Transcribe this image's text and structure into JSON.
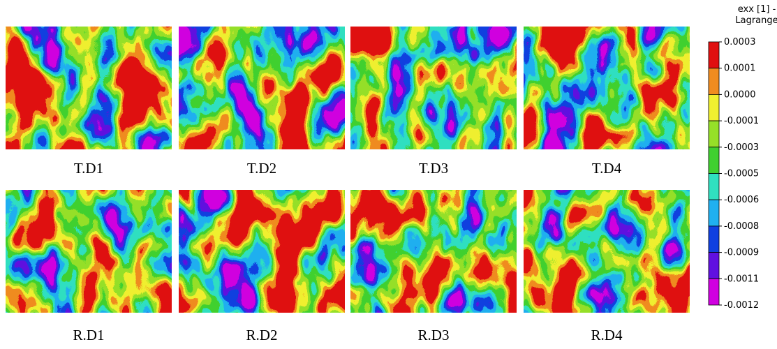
{
  "panels": [
    {
      "label": "T.D1"
    },
    {
      "label": "T.D2"
    },
    {
      "label": "T.D3"
    },
    {
      "label": "T.D4"
    },
    {
      "label": "R.D1"
    },
    {
      "label": "R.D2"
    },
    {
      "label": "R.D3"
    },
    {
      "label": "R.D4"
    }
  ],
  "colorbar": {
    "title": [
      "exx [1] -",
      "Lagrange"
    ],
    "labels": [
      "0.0003",
      "0.0001",
      "0.0000",
      "-0.0001",
      "-0.0003",
      "-0.0005",
      "-0.0006",
      "-0.0008",
      "-0.0009",
      "-0.0011",
      "-0.0012"
    ]
  }
}
